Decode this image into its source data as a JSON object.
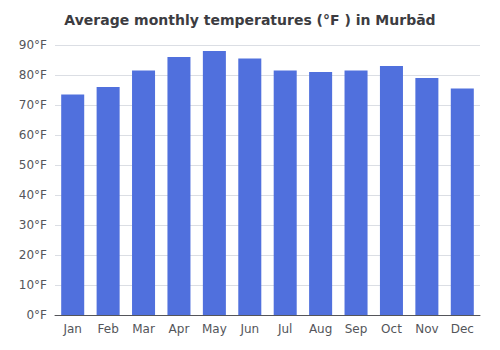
{
  "chart_data": {
    "type": "bar",
    "title": "Average monthly temperatures (°F ) in Murbād",
    "categories": [
      "Jan",
      "Feb",
      "Mar",
      "Apr",
      "May",
      "Jun",
      "Jul",
      "Aug",
      "Sep",
      "Oct",
      "Nov",
      "Dec"
    ],
    "values": [
      73.5,
      76.0,
      81.5,
      86.0,
      88.0,
      85.5,
      81.5,
      81.0,
      81.5,
      83.0,
      79.0,
      75.5
    ],
    "ylim": [
      0,
      90
    ],
    "yticks": [
      {
        "value": 0,
        "label": "0°F"
      },
      {
        "value": 10,
        "label": "10°F"
      },
      {
        "value": 20,
        "label": "20°F"
      },
      {
        "value": 30,
        "label": "30°F"
      },
      {
        "value": 40,
        "label": "40°F"
      },
      {
        "value": 50,
        "label": "50°F"
      },
      {
        "value": 60,
        "label": "60°F"
      },
      {
        "value": 70,
        "label": "70°F"
      },
      {
        "value": 80,
        "label": "80°F"
      },
      {
        "value": 90,
        "label": "90°F"
      }
    ],
    "grid": true
  }
}
